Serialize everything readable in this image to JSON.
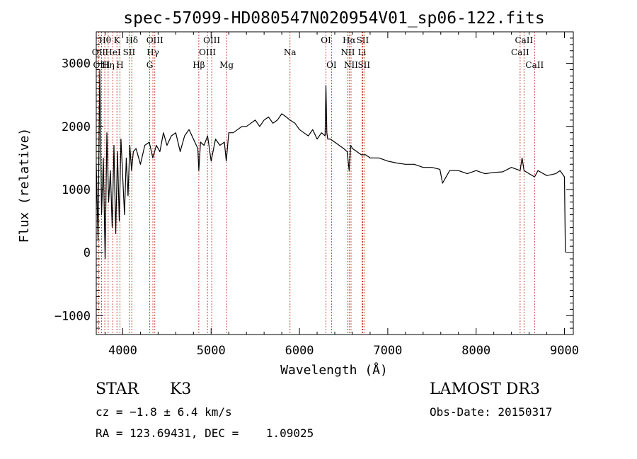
{
  "chart_data": {
    "type": "line",
    "title": "spec-57099-HD080547N020954V01_sp06-122.fits",
    "xlabel": "Wavelength (Å)",
    "ylabel": "Flux (relative)",
    "xlim": [
      3700,
      9100
    ],
    "ylim": [
      -1300,
      3500
    ],
    "x_ticks": [
      4000,
      5000,
      6000,
      7000,
      8000,
      9000
    ],
    "y_ticks": [
      -1000,
      0,
      1000,
      2000,
      3000
    ],
    "series": [
      {
        "name": "flux",
        "x": [
          3700,
          3720,
          3740,
          3760,
          3780,
          3800,
          3820,
          3840,
          3860,
          3880,
          3900,
          3920,
          3940,
          3960,
          3980,
          4000,
          4020,
          4040,
          4060,
          4080,
          4100,
          4120,
          4150,
          4200,
          4250,
          4300,
          4340,
          4380,
          4420,
          4460,
          4500,
          4550,
          4600,
          4650,
          4700,
          4750,
          4800,
          4850,
          4861,
          4880,
          4920,
          4960,
          5000,
          5050,
          5100,
          5150,
          5172,
          5200,
          5250,
          5300,
          5350,
          5400,
          5450,
          5500,
          5550,
          5600,
          5650,
          5700,
          5750,
          5800,
          5850,
          5893,
          5950,
          6000,
          6050,
          6100,
          6150,
          6200,
          6250,
          6290,
          6300,
          6310,
          6320,
          6350,
          6400,
          6450,
          6500,
          6540,
          6563,
          6580,
          6600,
          6650,
          6700,
          6750,
          6800,
          6900,
          7000,
          7100,
          7200,
          7300,
          7400,
          7500,
          7590,
          7620,
          7700,
          7800,
          7900,
          8000,
          8100,
          8200,
          8300,
          8400,
          8498,
          8520,
          8542,
          8600,
          8662,
          8700,
          8800,
          8900,
          8950,
          9000,
          9010
        ],
        "y": [
          1400,
          200,
          2900,
          600,
          1500,
          -100,
          1900,
          800,
          1300,
          400,
          1700,
          300,
          1600,
          500,
          1800,
          1200,
          600,
          1500,
          900,
          1700,
          1300,
          1600,
          1650,
          1400,
          1700,
          1750,
          1500,
          1700,
          1600,
          1900,
          1700,
          1850,
          1900,
          1600,
          1850,
          1950,
          1800,
          1650,
          1300,
          1750,
          1700,
          1850,
          1450,
          1800,
          1700,
          1750,
          1450,
          1900,
          1900,
          1950,
          2000,
          2000,
          2050,
          2100,
          2000,
          2100,
          2150,
          2050,
          2100,
          2200,
          2150,
          2100,
          2050,
          1950,
          1900,
          1850,
          1950,
          1800,
          1900,
          1850,
          2650,
          1900,
          1800,
          1800,
          1750,
          1700,
          1650,
          1600,
          1300,
          1700,
          1650,
          1600,
          1550,
          1550,
          1500,
          1500,
          1450,
          1420,
          1400,
          1400,
          1350,
          1350,
          1320,
          1100,
          1300,
          1300,
          1250,
          1300,
          1250,
          1270,
          1280,
          1350,
          1300,
          1500,
          1300,
          1250,
          1200,
          1300,
          1220,
          1250,
          1300,
          1200,
          0
        ]
      }
    ],
    "spectral_lines": [
      {
        "label": "Hθ",
        "x": 3797,
        "row": 1
      },
      {
        "label": "OII",
        "x": 3727,
        "row": 2
      },
      {
        "label": "OIII",
        "x": 3760,
        "row": 3
      },
      {
        "label": "Hη",
        "x": 3835,
        "row": 3
      },
      {
        "label": "HeI",
        "x": 3889,
        "row": 2
      },
      {
        "label": "K",
        "x": 3934,
        "row": 1
      },
      {
        "label": "H",
        "x": 3968,
        "row": 3
      },
      {
        "label": "SII",
        "x": 4072,
        "row": 2
      },
      {
        "label": "Hδ",
        "x": 4102,
        "row": 1
      },
      {
        "label": "Hγ",
        "x": 4341,
        "row": 2
      },
      {
        "label": "G",
        "x": 4305,
        "row": 3
      },
      {
        "label": "OIII",
        "x": 4363,
        "row": 1
      },
      {
        "label": "Hβ",
        "x": 4861,
        "row": 3
      },
      {
        "label": "OIII",
        "x": 5007,
        "row": 1
      },
      {
        "label": "OIII",
        "x": 4959,
        "row": 2
      },
      {
        "label": "Mg",
        "x": 5175,
        "row": 3
      },
      {
        "label": "Na",
        "x": 5893,
        "row": 2
      },
      {
        "label": "OI",
        "x": 6300,
        "row": 1
      },
      {
        "label": "OI",
        "x": 6363,
        "row": 3
      },
      {
        "label": "Hα",
        "x": 6563,
        "row": 1
      },
      {
        "label": "NII",
        "x": 6548,
        "row": 2
      },
      {
        "label": "NII",
        "x": 6584,
        "row": 3
      },
      {
        "label": "SII",
        "x": 6716,
        "row": 1
      },
      {
        "label": "Li",
        "x": 6708,
        "row": 2
      },
      {
        "label": "SII",
        "x": 6731,
        "row": 3
      },
      {
        "label": "CaII",
        "x": 8542,
        "row": 1
      },
      {
        "label": "CaII",
        "x": 8498,
        "row": 2
      },
      {
        "label": "CaII",
        "x": 8662,
        "row": 3
      }
    ],
    "colors": {
      "spectrum": "#000000",
      "lines": "#c0392b",
      "axes": "#000000"
    }
  },
  "info": {
    "object_type": "STAR",
    "subclass": "K3",
    "survey": "LAMOST DR3",
    "cz": "cz = −1.8 ± 6.4 km/s",
    "obs_date": "Obs-Date: 20150317",
    "coords": "RA = 123.69431, DEC =    1.09025"
  }
}
